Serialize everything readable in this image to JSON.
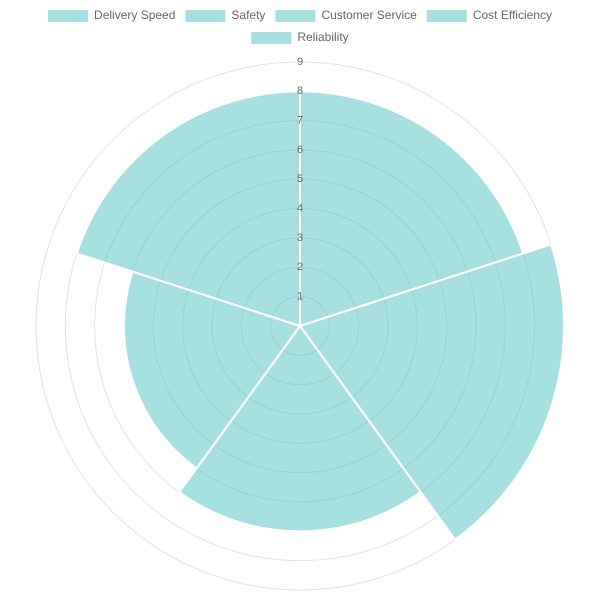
{
  "chart_data": {
    "type": "polarArea",
    "categories": [
      "Delivery Speed",
      "Safety",
      "Customer Service",
      "Cost Efficiency",
      "Reliability"
    ],
    "values": [
      8,
      9,
      7,
      6,
      8
    ],
    "color": "rgba(75, 192, 192, 0.5)",
    "rlim": [
      0,
      9
    ],
    "rticks": [
      1,
      2,
      3,
      4,
      5,
      6,
      7,
      8,
      9
    ],
    "grid": true,
    "legend": "top"
  }
}
